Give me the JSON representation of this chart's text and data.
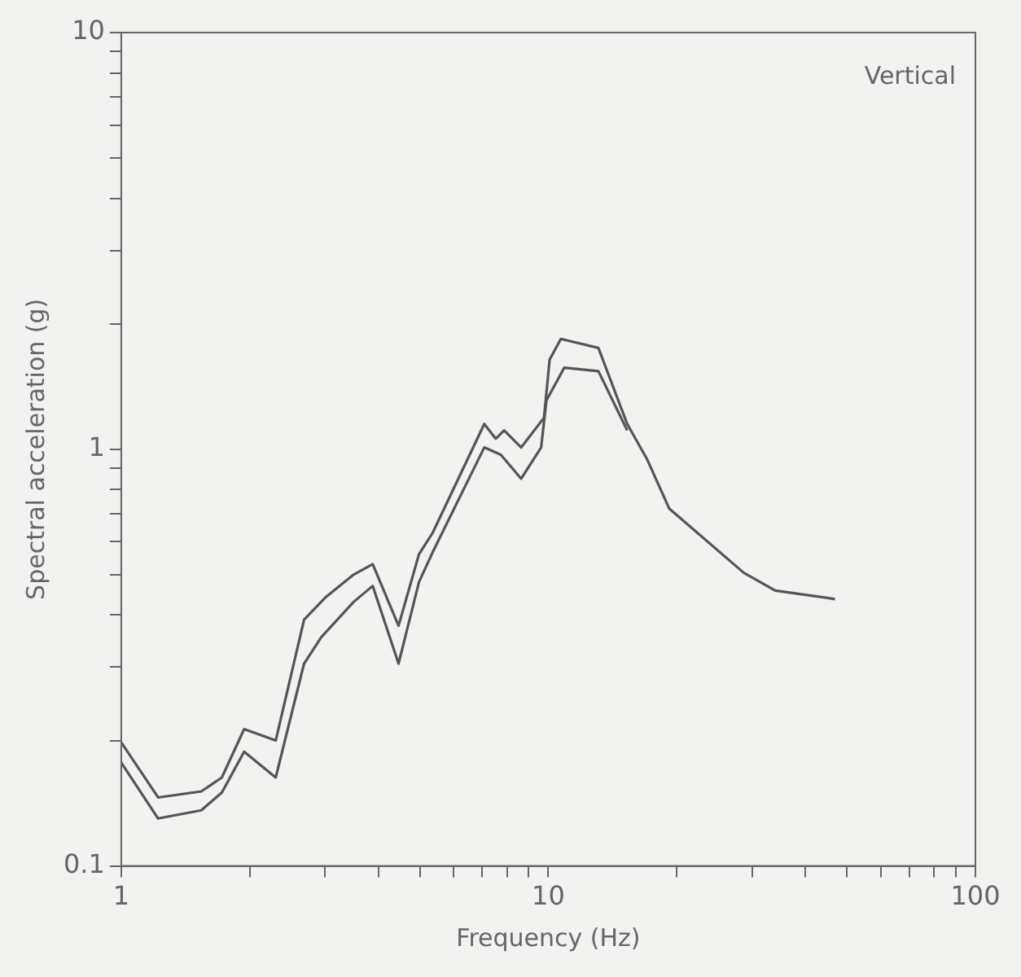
{
  "chart_data": {
    "type": "line",
    "xlabel": "Frequency (Hz)",
    "ylabel": "Spectral acceleration (g)",
    "log": "xy",
    "grid": false,
    "legend": false,
    "marker": "none",
    "line_style": "solid",
    "xlim": [
      1,
      100
    ],
    "ylim": [
      0.1,
      10
    ],
    "xticks": [
      1,
      {
        "value": 2,
        "label": null
      },
      {
        "value": 3,
        "label": null
      },
      {
        "value": 4,
        "label": null
      },
      {
        "value": 5,
        "label": null
      },
      {
        "value": 6,
        "label": null
      },
      {
        "value": 7,
        "label": null
      },
      {
        "value": 8,
        "label": null
      },
      {
        "value": 9,
        "label": null
      },
      10,
      {
        "value": 20,
        "label": null
      },
      {
        "value": 30,
        "label": null
      },
      {
        "value": 40,
        "label": null
      },
      {
        "value": 50,
        "label": null
      },
      {
        "value": 60,
        "label": null
      },
      {
        "value": 70,
        "label": null
      },
      {
        "value": 80,
        "label": null
      },
      {
        "value": 90,
        "label": null
      },
      100
    ],
    "yticks": [
      0.1,
      {
        "value": 0.2,
        "label": null
      },
      {
        "value": 0.3,
        "label": null
      },
      {
        "value": 0.4,
        "label": null
      },
      {
        "value": 0.5,
        "label": null
      },
      {
        "value": 0.6,
        "label": null
      },
      {
        "value": 0.7,
        "label": null
      },
      {
        "value": 0.8,
        "label": null
      },
      {
        "value": 0.9,
        "label": null
      },
      1,
      {
        "value": 2,
        "label": null
      },
      {
        "value": 3,
        "label": null
      },
      {
        "value": 4,
        "label": null
      },
      {
        "value": 5,
        "label": null
      },
      {
        "value": 6,
        "label": null
      },
      {
        "value": 7,
        "label": null
      },
      {
        "value": 8,
        "label": null
      },
      {
        "value": 9,
        "label": null
      },
      10
    ],
    "annotations": [
      "Vertical"
    ],
    "series": [
      {
        "color": "#555555",
        "x": [
          1,
          1.22,
          1.54,
          1.72,
          1.94,
          2.3,
          2.68,
          3.0,
          3.5,
          3.88,
          4.46,
          4.98,
          5.36,
          7.08,
          7.53,
          7.88,
          8.64,
          9.77,
          10.07,
          10.7,
          13.1,
          15.3,
          17.0,
          19.2,
          28.7,
          34.0,
          46.9
        ],
        "values": [
          0.198,
          0.146,
          0.151,
          0.163,
          0.213,
          0.2,
          0.39,
          0.44,
          0.5,
          0.53,
          0.377,
          0.56,
          0.63,
          1.15,
          1.06,
          1.11,
          1.01,
          1.19,
          1.64,
          1.84,
          1.75,
          1.15,
          0.95,
          0.72,
          0.505,
          0.458,
          0.437
        ]
      },
      {
        "color": "#555555",
        "x": [
          1,
          1.22,
          1.54,
          1.72,
          1.94,
          2.3,
          2.68,
          2.94,
          3.5,
          3.88,
          4.46,
          4.98,
          5.36,
          7.08,
          7.74,
          8.64,
          9.62,
          9.9,
          10.9,
          13.1,
          15.3
        ],
        "values": [
          0.177,
          0.13,
          0.136,
          0.15,
          0.188,
          0.163,
          0.306,
          0.354,
          0.43,
          0.47,
          0.306,
          0.48,
          0.566,
          1.01,
          0.97,
          0.85,
          1.01,
          1.31,
          1.57,
          1.54,
          1.11
        ]
      }
    ]
  }
}
